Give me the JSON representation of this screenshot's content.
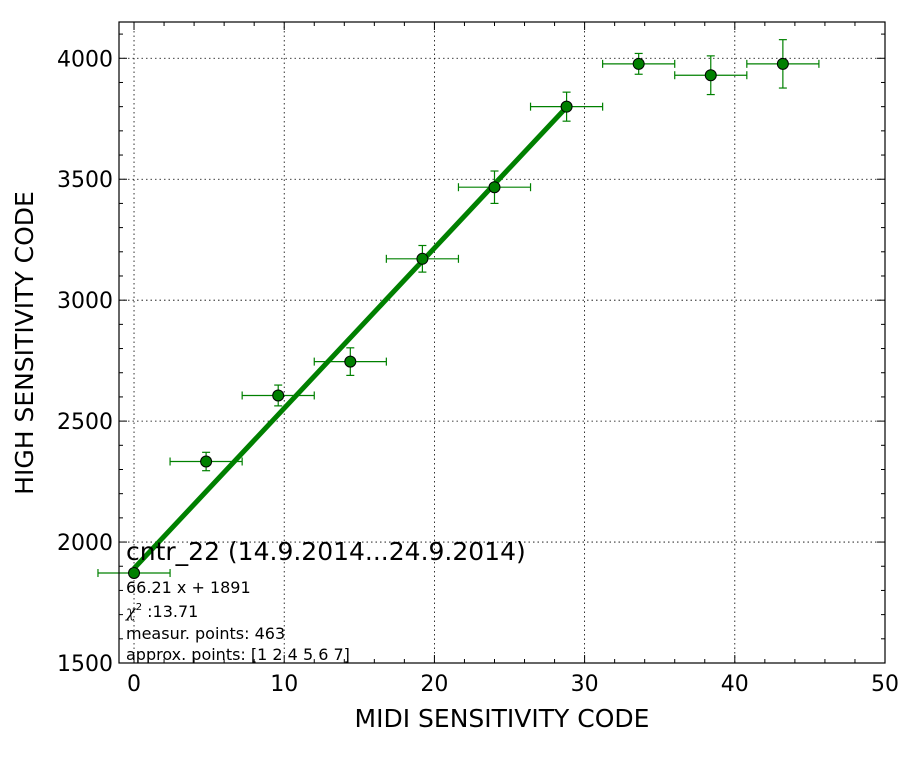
{
  "chart_data": {
    "type": "scatter",
    "xlabel": "MIDI SENSITIVITY CODE",
    "ylabel": "HIGH SENSITIVITY CODE",
    "xlim": [
      -1,
      50
    ],
    "ylim": [
      1500,
      4150
    ],
    "xticks": [
      0,
      10,
      20,
      30,
      40,
      50
    ],
    "yticks": [
      1500,
      2000,
      2500,
      3000,
      3500,
      4000
    ],
    "grid": true,
    "colors": {
      "series": "#008000",
      "marker": "#008000",
      "edge": "#000000"
    },
    "series": [
      {
        "type": "errorbar",
        "points": [
          {
            "x": 0.0,
            "y": 1872,
            "xerr": 2.4,
            "yerr": 12
          },
          {
            "x": 4.8,
            "y": 2333,
            "xerr": 2.4,
            "yerr": 38
          },
          {
            "x": 9.6,
            "y": 2606,
            "xerr": 2.4,
            "yerr": 43
          },
          {
            "x": 14.4,
            "y": 2746,
            "xerr": 2.4,
            "yerr": 57
          },
          {
            "x": 19.2,
            "y": 3171,
            "xerr": 2.4,
            "yerr": 55
          },
          {
            "x": 24.0,
            "y": 3467,
            "xerr": 2.4,
            "yerr": 67
          },
          {
            "x": 28.8,
            "y": 3800,
            "xerr": 2.4,
            "yerr": 60
          },
          {
            "x": 33.6,
            "y": 3977,
            "xerr": 2.4,
            "yerr": 43
          },
          {
            "x": 38.4,
            "y": 3930,
            "xerr": 2.4,
            "yerr": 80
          },
          {
            "x": 43.2,
            "y": 3977,
            "xerr": 2.4,
            "yerr": 100
          }
        ]
      },
      {
        "type": "fit-line",
        "slope": 66.21,
        "intercept": 1891,
        "x_range": [
          0,
          28.8
        ]
      }
    ],
    "annotation": {
      "title": "cntr_22 (14.9.2014...24.9.2014)",
      "equation": "66.21 x + 1891",
      "chi_symbol": "χ",
      "chi_sup": "2",
      "chi_value": " :13.71",
      "measur_points": "measur. points: 463",
      "approx_points": "approx. points: [1 2 4 5 6 7]"
    }
  }
}
